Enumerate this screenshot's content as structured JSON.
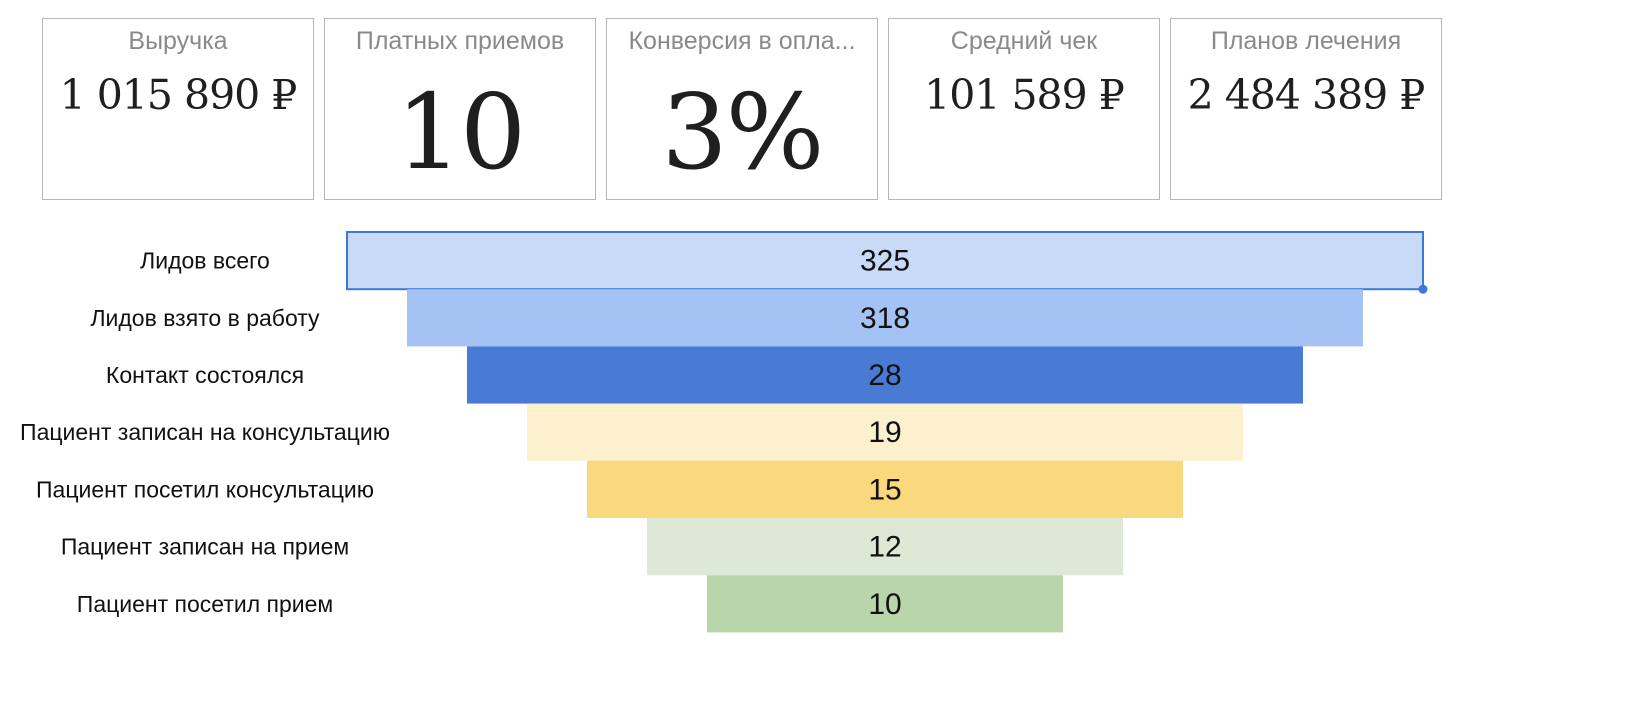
{
  "kpis": [
    {
      "title": "Выручка",
      "value": "1 015 890 ₽"
    },
    {
      "title": "Платных приемов",
      "value": "10"
    },
    {
      "title": "Конверсия в опла...",
      "value": "3%"
    },
    {
      "title": "Средний чек",
      "value": "101 589 ₽"
    },
    {
      "title": "Планов лечения",
      "value": "2 484 389 ₽"
    }
  ],
  "chart_data": {
    "type": "funnel",
    "categories": [
      "Лидов всего",
      "Лидов взято в работу",
      "Контакт состоялся",
      "Пациент записан на консультацию",
      "Пациент посетил консультацию",
      "Пациент записан на прием",
      "Пациент посетил прием"
    ],
    "values": [
      325,
      318,
      28,
      19,
      15,
      12,
      10
    ],
    "colors": [
      "#c9daf8",
      "#a4c2f4",
      "#4a7bd4",
      "#fcf0cf",
      "#fad97e",
      "#dde9d5",
      "#b9d6aa"
    ],
    "selected_stage": "Лидов всего",
    "selection_color": "#3b78d8"
  }
}
